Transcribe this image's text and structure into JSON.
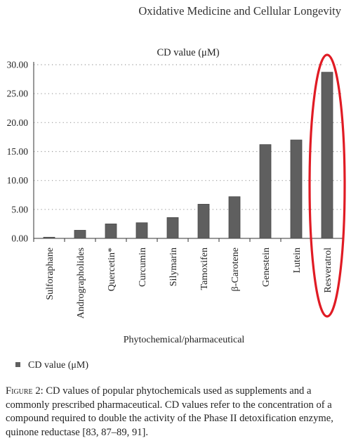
{
  "journal_header": "Oxidative Medicine and Cellular Longevity",
  "figure_label": "Figure 2:",
  "caption_text": "CD values of popular phytochemicals used as supplements and a commonly prescribed pharmaceutical. CD values refer to the concentration of a compound required to double the activity of the Phase II detoxification enzyme, quinone reductase [83, 87–89, 91].",
  "colors": {
    "bar": "#5f5f5f",
    "highlight_ellipse": "#e01b24",
    "grid": "#9a9a9a"
  },
  "chart_data": {
    "type": "bar",
    "title": "CD value (μM)",
    "xlabel": "Phytochemical/pharmaceutical",
    "ylabel": "",
    "categories": [
      "Sulforaphane",
      "Andrographolides",
      "Quercetin*",
      "Curcumin",
      "Silymarin",
      "Tamoxifen",
      "β-Carotene",
      "Genestein",
      "Lutein",
      "Resveratrol"
    ],
    "series": [
      {
        "name": "CD value (μM)",
        "values": [
          0.2,
          1.4,
          2.5,
          2.7,
          3.6,
          5.9,
          7.2,
          16.2,
          17.0,
          28.7
        ]
      }
    ],
    "ylim": [
      0,
      30
    ],
    "yticks": [
      "0.00",
      "5.00",
      "10.00",
      "15.00",
      "20.00",
      "25.00",
      "30.00"
    ],
    "grid": true,
    "legend": "bottom-left",
    "highlighted_category": "Resveratrol"
  }
}
